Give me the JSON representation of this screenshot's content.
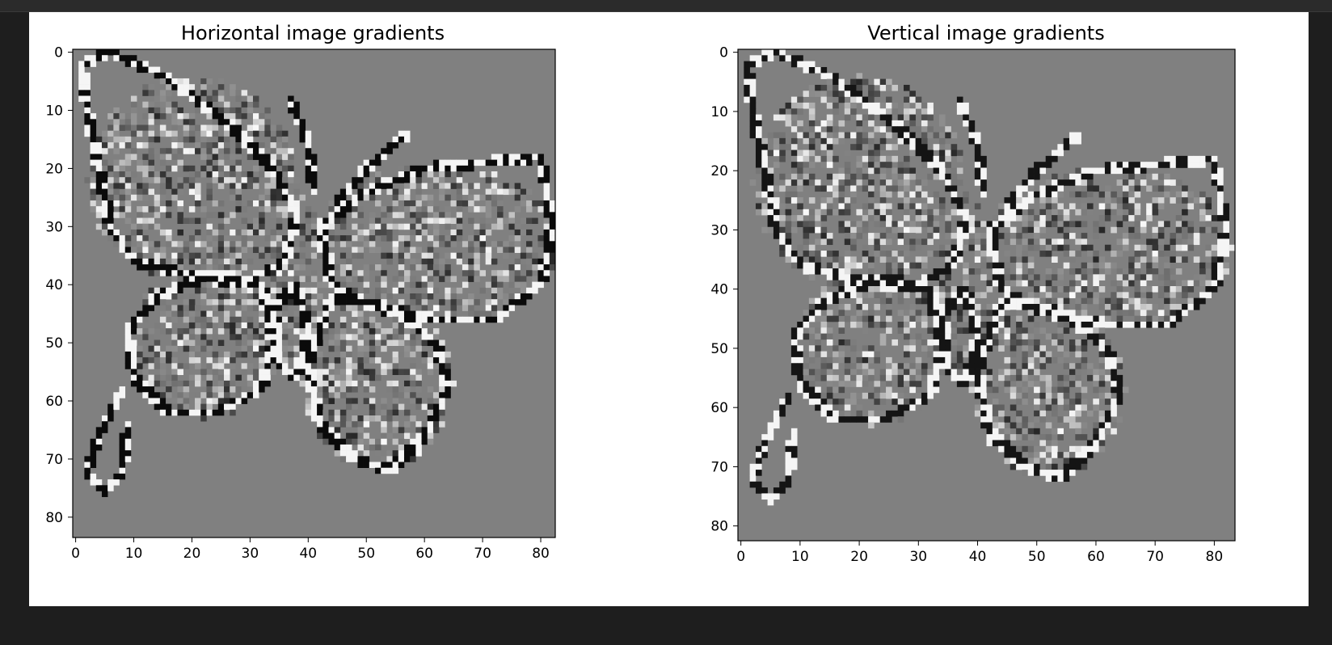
{
  "colors": {
    "background": "#1e1e1e",
    "figure": "#ffffff",
    "neutral": "#808080",
    "positive": "#ffffff",
    "negative": "#000000"
  },
  "chart_data": [
    {
      "type": "heatmap",
      "title": "Horizontal image gradients",
      "colormap": "gray",
      "image_size": [
        84,
        83
      ],
      "xlim": [
        -0.5,
        82.5
      ],
      "ylim": [
        83.5,
        -0.5
      ],
      "x_ticks": [
        0,
        10,
        20,
        30,
        40,
        50,
        60,
        70,
        80
      ],
      "y_ticks": [
        0,
        10,
        20,
        30,
        40,
        50,
        60,
        70,
        80
      ],
      "xlabel": "",
      "ylabel": ""
    },
    {
      "type": "heatmap",
      "title": "Vertical image gradients",
      "colormap": "gray",
      "image_size": [
        83,
        84
      ],
      "xlim": [
        -0.5,
        83.5
      ],
      "ylim": [
        82.5,
        -0.5
      ],
      "x_ticks": [
        0,
        10,
        20,
        30,
        40,
        50,
        60,
        70,
        80
      ],
      "y_ticks": [
        0,
        10,
        20,
        30,
        40,
        50,
        60,
        70,
        80
      ],
      "xlabel": "",
      "ylabel": ""
    }
  ]
}
